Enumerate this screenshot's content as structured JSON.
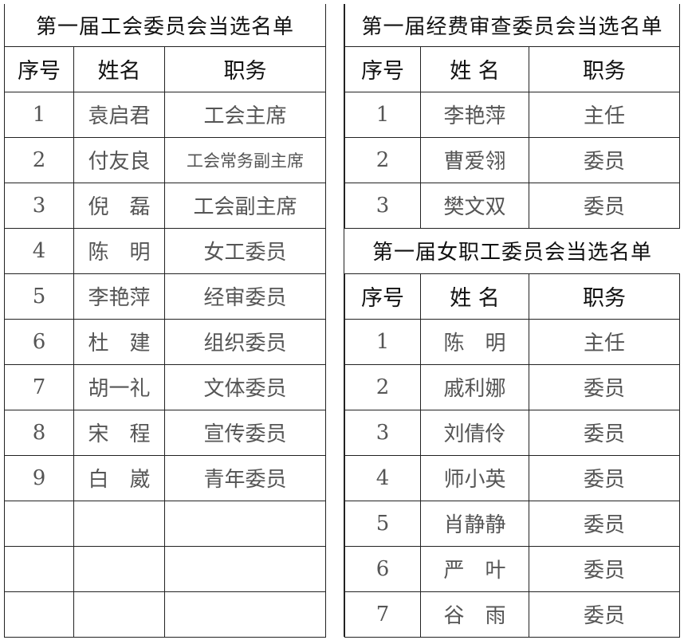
{
  "union_committee": {
    "title": "第一届工会委员会当选名单",
    "headers": [
      "序号",
      "姓名",
      "职务"
    ],
    "rows": [
      [
        "1",
        "袁启君",
        "工会主席"
      ],
      [
        "2",
        "付友良",
        "工会常务副主席"
      ],
      [
        "3",
        "倪　磊",
        "工会副主席"
      ],
      [
        "4",
        "陈　明",
        "女工委员"
      ],
      [
        "5",
        "李艳萍",
        "经审委员"
      ],
      [
        "6",
        "杜　建",
        "组织委员"
      ],
      [
        "7",
        "胡一礼",
        "文体委员"
      ],
      [
        "8",
        "宋　程",
        "宣传委员"
      ],
      [
        "9",
        "白　崴",
        "青年委员"
      ],
      [
        "",
        "",
        ""
      ],
      [
        "",
        "",
        ""
      ],
      [
        "",
        "",
        ""
      ]
    ]
  },
  "audit_committee": {
    "title": "第一届经费审查委员会当选名单",
    "headers": [
      "序号",
      "姓 名",
      "职务"
    ],
    "rows": [
      [
        "1",
        "李艳萍",
        "主任"
      ],
      [
        "2",
        "曹爱翎",
        "委员"
      ],
      [
        "3",
        "樊文双",
        "委员"
      ]
    ]
  },
  "women_committee": {
    "title": "第一届女职工委员会当选名单",
    "headers": [
      "序号",
      "姓 名",
      "职务"
    ],
    "rows": [
      [
        "1",
        "陈　明",
        "主任"
      ],
      [
        "2",
        "戚利娜",
        "委员"
      ],
      [
        "3",
        "刘倩伶",
        "委员"
      ],
      [
        "4",
        "师小英",
        "委员"
      ],
      [
        "5",
        "肖静静",
        "委员"
      ],
      [
        "6",
        "严　叶",
        "委员"
      ],
      [
        "7",
        "谷　雨",
        "委员"
      ]
    ]
  }
}
